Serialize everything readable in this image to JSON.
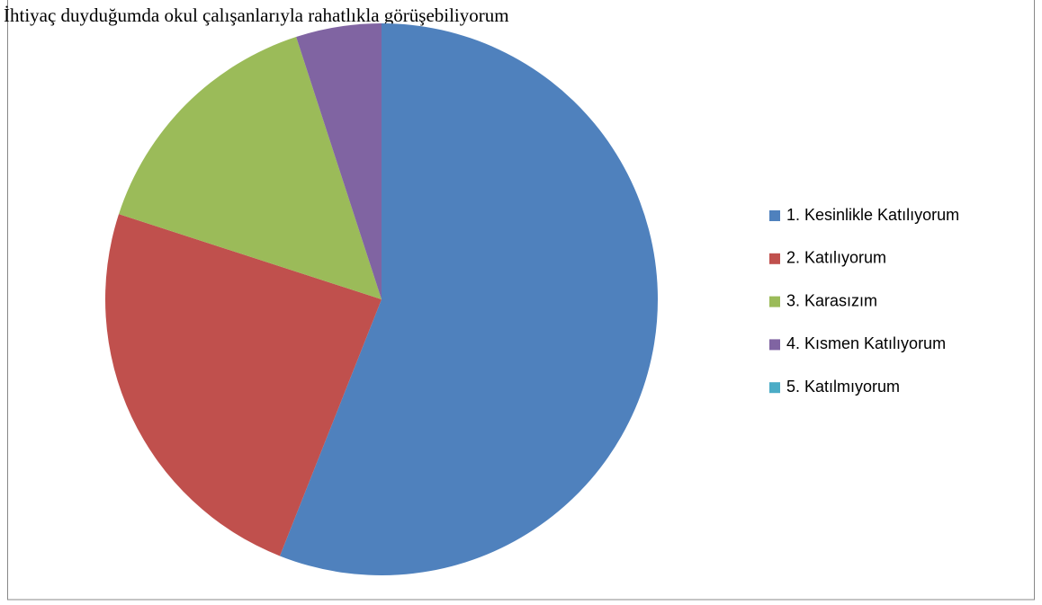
{
  "chart_data": {
    "type": "pie",
    "title": "İhtiyaç duyduğumda okul çalışanlarıyla rahatlıkla görüşebiliyorum",
    "categories": [
      "1. Kesinlikle Katılıyorum",
      "2. Katılıyorum",
      "3. Karasızım",
      "4. Kısmen Katılıyorum",
      "5. Katılmıyorum"
    ],
    "values": [
      56,
      24,
      15,
      5,
      0
    ],
    "colors": [
      "#4f81bd",
      "#c0504d",
      "#9bbb59",
      "#8064a2",
      "#4bacc6"
    ],
    "legend": "right"
  }
}
